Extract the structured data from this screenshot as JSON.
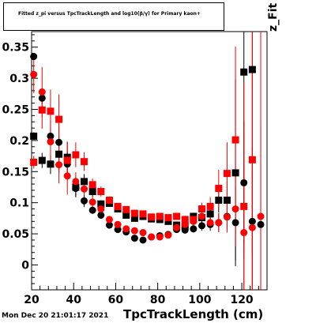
{
  "title": "Fitted  z_pi  versus TpcTrackLength and log10(β/γ) for Primary kaon+",
  "footer": "Mon Dec 20 21:01:17 2021",
  "chart_data": {
    "type": "scatter",
    "title": "Fitted  z_pi  versus TpcTrackLength and log10(β/γ) for Primary kaon+",
    "xlabel": "TpcTrackLength (cm)",
    "ylabel": "z_Fit",
    "xlim": [
      20,
      132
    ],
    "ylim": [
      -0.04,
      0.375
    ],
    "xticks": [
      20,
      40,
      60,
      80,
      100,
      120
    ],
    "yticks": [
      0,
      0.05,
      0.1,
      0.15,
      0.2,
      0.25,
      0.3,
      0.35
    ],
    "ytick_labels": [
      "0",
      "0.05",
      "0.1",
      "0.15",
      "0.2",
      "0.25",
      "0.3",
      "0.35"
    ],
    "grid": false,
    "series": [
      {
        "color": "#000000",
        "marker": "circle",
        "points": [
          [
            21,
            0.335,
            0.004
          ],
          [
            25,
            0.268,
            0.01
          ],
          [
            29,
            0.207,
            0.014
          ],
          [
            33,
            0.197,
            0.03
          ],
          [
            37,
            0.162,
            0.02
          ],
          [
            41,
            0.123,
            0.014
          ],
          [
            45,
            0.103,
            0.01
          ],
          [
            49,
            0.088,
            0.006
          ],
          [
            53,
            0.08,
            0.005
          ],
          [
            57,
            0.064,
            0.004
          ],
          [
            61,
            0.057,
            0.003
          ],
          [
            65,
            0.053,
            0.003
          ],
          [
            69,
            0.043,
            0.003
          ],
          [
            73,
            0.04,
            0.003
          ],
          [
            77,
            0.045,
            0.003
          ],
          [
            81,
            0.047,
            0.003
          ],
          [
            85,
            0.049,
            0.003
          ],
          [
            89,
            0.057,
            0.003
          ],
          [
            93,
            0.056,
            0.004
          ],
          [
            97,
            0.058,
            0.006
          ],
          [
            101,
            0.063,
            0.008
          ],
          [
            105,
            0.065,
            0.01
          ],
          [
            109,
            0.068,
            0.015
          ],
          [
            113,
            0.078,
            0.02
          ],
          [
            117,
            0.068,
            0.06
          ],
          [
            121,
            0.132,
            0.1
          ],
          [
            125,
            0.07,
            0.12
          ],
          [
            129,
            0.065,
            0.16
          ]
        ]
      },
      {
        "color": "#000000",
        "marker": "square",
        "points": [
          [
            21,
            0.207,
            0.006
          ],
          [
            25,
            0.168,
            0.012
          ],
          [
            29,
            0.162,
            0.016
          ],
          [
            33,
            0.178,
            0.03
          ],
          [
            37,
            0.173,
            0.025
          ],
          [
            41,
            0.125,
            0.016
          ],
          [
            45,
            0.134,
            0.012
          ],
          [
            49,
            0.118,
            0.009
          ],
          [
            53,
            0.098,
            0.006
          ],
          [
            57,
            0.099,
            0.005
          ],
          [
            61,
            0.09,
            0.004
          ],
          [
            65,
            0.08,
            0.004
          ],
          [
            69,
            0.075,
            0.004
          ],
          [
            73,
            0.078,
            0.004
          ],
          [
            77,
            0.074,
            0.004
          ],
          [
            81,
            0.073,
            0.004
          ],
          [
            85,
            0.07,
            0.004
          ],
          [
            89,
            0.064,
            0.004
          ],
          [
            93,
            0.062,
            0.005
          ],
          [
            97,
            0.078,
            0.006
          ],
          [
            101,
            0.076,
            0.008
          ],
          [
            105,
            0.082,
            0.01
          ],
          [
            109,
            0.104,
            0.02
          ],
          [
            113,
            0.104,
            0.03
          ],
          [
            117,
            0.148,
            0.15
          ],
          [
            121,
            0.31,
            0.3
          ],
          [
            125,
            0.314,
            0.3
          ]
        ]
      },
      {
        "color": "#ff0000",
        "marker": "circle",
        "points": [
          [
            21,
            0.306,
            0.03
          ],
          [
            25,
            0.278,
            0.04
          ],
          [
            29,
            0.198,
            0.035
          ],
          [
            33,
            0.161,
            0.03
          ],
          [
            37,
            0.143,
            0.03
          ],
          [
            41,
            0.134,
            0.015
          ],
          [
            45,
            0.122,
            0.01
          ],
          [
            49,
            0.101,
            0.008
          ],
          [
            53,
            0.09,
            0.006
          ],
          [
            57,
            0.073,
            0.005
          ],
          [
            61,
            0.065,
            0.004
          ],
          [
            65,
            0.058,
            0.004
          ],
          [
            69,
            0.055,
            0.004
          ],
          [
            73,
            0.052,
            0.004
          ],
          [
            77,
            0.045,
            0.003
          ],
          [
            81,
            0.045,
            0.003
          ],
          [
            85,
            0.048,
            0.003
          ],
          [
            89,
            0.06,
            0.004
          ],
          [
            93,
            0.065,
            0.005
          ],
          [
            97,
            0.07,
            0.006
          ],
          [
            101,
            0.078,
            0.008
          ],
          [
            105,
            0.068,
            0.01
          ],
          [
            109,
            0.068,
            0.015
          ],
          [
            113,
            0.077,
            0.025
          ],
          [
            117,
            0.09,
            0.06
          ],
          [
            121,
            0.052,
            0.1
          ],
          [
            125,
            0.06,
            0.25
          ],
          [
            129,
            0.078,
            0.3
          ]
        ]
      },
      {
        "color": "#ff0000",
        "marker": "square",
        "points": [
          [
            21,
            0.165,
            0.01
          ],
          [
            25,
            0.249,
            0.03
          ],
          [
            29,
            0.247,
            0.035
          ],
          [
            33,
            0.234,
            0.04
          ],
          [
            37,
            0.168,
            0.03
          ],
          [
            41,
            0.177,
            0.02
          ],
          [
            45,
            0.166,
            0.015
          ],
          [
            49,
            0.129,
            0.01
          ],
          [
            53,
            0.118,
            0.008
          ],
          [
            57,
            0.104,
            0.006
          ],
          [
            61,
            0.094,
            0.005
          ],
          [
            65,
            0.089,
            0.005
          ],
          [
            69,
            0.083,
            0.004
          ],
          [
            73,
            0.082,
            0.004
          ],
          [
            77,
            0.077,
            0.004
          ],
          [
            81,
            0.078,
            0.004
          ],
          [
            85,
            0.076,
            0.004
          ],
          [
            89,
            0.078,
            0.005
          ],
          [
            93,
            0.073,
            0.006
          ],
          [
            97,
            0.073,
            0.008
          ],
          [
            101,
            0.09,
            0.01
          ],
          [
            105,
            0.094,
            0.015
          ],
          [
            109,
            0.123,
            0.03
          ],
          [
            113,
            0.147,
            0.05
          ],
          [
            117,
            0.201,
            0.15
          ],
          [
            121,
            0.094,
            0.2
          ],
          [
            125,
            0.169,
            0.25
          ]
        ]
      }
    ]
  }
}
